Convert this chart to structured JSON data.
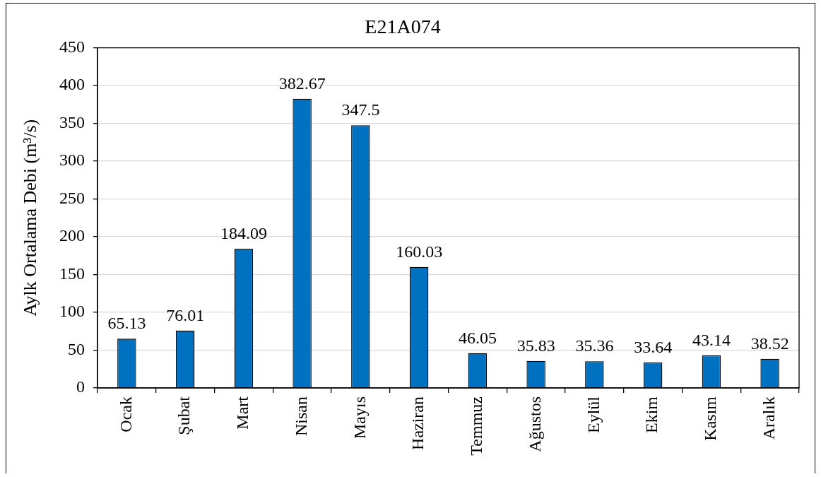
{
  "chart_data": {
    "type": "bar",
    "title": "E21A074",
    "ylabel": "Aylk Ortalama Debi (m³/s)",
    "categories": [
      "Ocak",
      "Şubat",
      "Mart",
      "Nisan",
      "Mayıs",
      "Haziran",
      "Temmuz",
      "Ağustos",
      "Eylül",
      "Ekim",
      "Kasım",
      "Aralık"
    ],
    "values": [
      65.13,
      76.01,
      184.09,
      382.67,
      347.5,
      160.03,
      46.05,
      35.83,
      35.36,
      33.64,
      43.14,
      38.52
    ],
    "color": "#0070c0",
    "ylim": [
      0,
      450
    ],
    "yticks": [
      0,
      50,
      100,
      150,
      200,
      250,
      300,
      350,
      400,
      450
    ],
    "grid": "y",
    "data_labels": true
  }
}
